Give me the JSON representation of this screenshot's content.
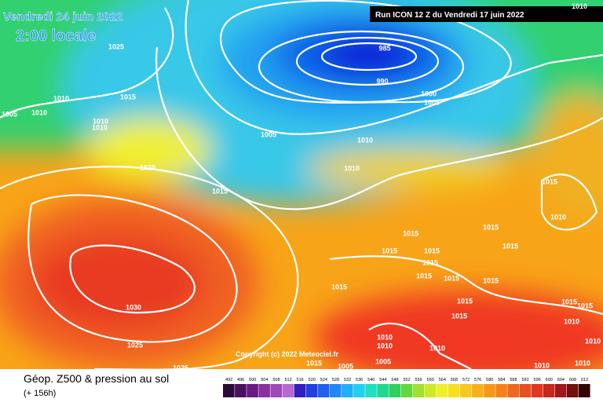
{
  "header": {
    "date": "Vendredi 24 juin 2022",
    "time": "2:00 locale",
    "run": "Run ICON 12 Z du Vendredi 17 juin 2022",
    "corner_label": "1010"
  },
  "map": {
    "copyright": "Copyright (c) 2022 Meteociel.fr",
    "isobar_labels": [
      "1025",
      "985",
      "990",
      "1010",
      "1015",
      "1005",
      "1010",
      "1000",
      "1005",
      "1010",
      "1010",
      "1005",
      "1010",
      "1020",
      "1010",
      "1015",
      "1015",
      "1010",
      "1015",
      "1015",
      "1015",
      "1015",
      "1015",
      "1015",
      "1015",
      "1015",
      "1015",
      "1015",
      "1030",
      "1015",
      "1015",
      "1015",
      "1015",
      "1010",
      "1025",
      "1010",
      "1010",
      "1010",
      "1005",
      "1015",
      "1005",
      "1010",
      "1010",
      "1010",
      "1025"
    ]
  },
  "footer": {
    "title": "Géop. Z500 & pression au sol",
    "subtitle": "(+ 156h)",
    "scale_labels": [
      492,
      496,
      500,
      504,
      508,
      512,
      516,
      520,
      524,
      528,
      532,
      536,
      540,
      544,
      548,
      552,
      556,
      560,
      564,
      568,
      572,
      576,
      580,
      584,
      588,
      592,
      596,
      600,
      604,
      608,
      612
    ]
  }
}
